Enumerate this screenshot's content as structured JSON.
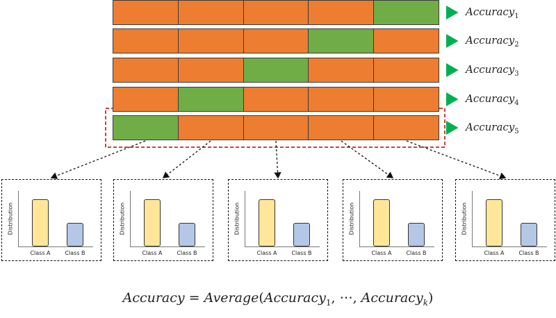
{
  "folds": [
    {
      "test_index": 4,
      "label": "Accuracy",
      "subscript": "1"
    },
    {
      "test_index": 3,
      "label": "Accuracy",
      "subscript": "2"
    },
    {
      "test_index": 2,
      "label": "Accuracy",
      "subscript": "3"
    },
    {
      "test_index": 1,
      "label": "Accuracy",
      "subscript": "4"
    },
    {
      "test_index": 0,
      "label": "Accuracy",
      "subscript": "5"
    }
  ],
  "segments_per_fold": 5,
  "highlighted_fold": 5,
  "distribution_panels": {
    "count": 5,
    "ylabel": "Distribution",
    "class_a_label": "Class A",
    "class_b_label": "Class B"
  },
  "formula": {
    "lhs": "Accuracy",
    "equals": " = ",
    "func": "Average",
    "open": "(",
    "term1": "Accuracy",
    "term1_sub": "1",
    "sep1": ", ",
    "ellipsis": "⋯",
    "sep2": ", ",
    "termk": "Accuracy",
    "termk_sub": "k",
    "close": ")"
  },
  "colors": {
    "train": "#ed7d31",
    "test": "#70ad47",
    "class_a": "#ffe699",
    "class_b": "#b4c7e7",
    "arrow": "#00b050",
    "highlight": "#c00000"
  }
}
